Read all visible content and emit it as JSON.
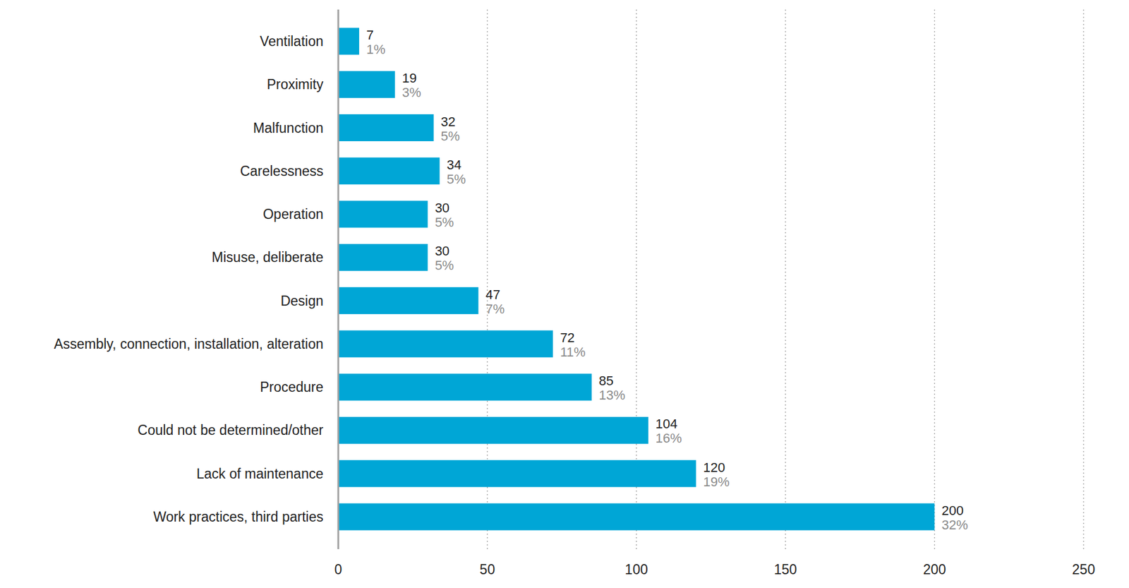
{
  "chart_data": {
    "type": "bar",
    "orientation": "horizontal",
    "categories": [
      "Ventilation",
      "Proximity",
      "Malfunction",
      "Carelessness",
      "Operation",
      "Misuse, deliberate",
      "Design",
      "Assembly, connection, installation, alteration",
      "Procedure",
      "Could not be determined/other",
      "Lack of maintenance",
      "Work practices, third parties"
    ],
    "values": [
      7,
      19,
      32,
      34,
      30,
      30,
      47,
      72,
      85,
      104,
      120,
      200
    ],
    "share_labels": [
      "1%",
      "3%",
      "5%",
      "5%",
      "5%",
      "5%",
      "7%",
      "11%",
      "13%",
      "16%",
      "19%",
      "32%"
    ],
    "color": "#00a6d6",
    "xlim": [
      0,
      250
    ],
    "xticks": [
      0,
      50,
      100,
      150,
      200,
      250
    ],
    "grid": true,
    "data_labels": true
  }
}
